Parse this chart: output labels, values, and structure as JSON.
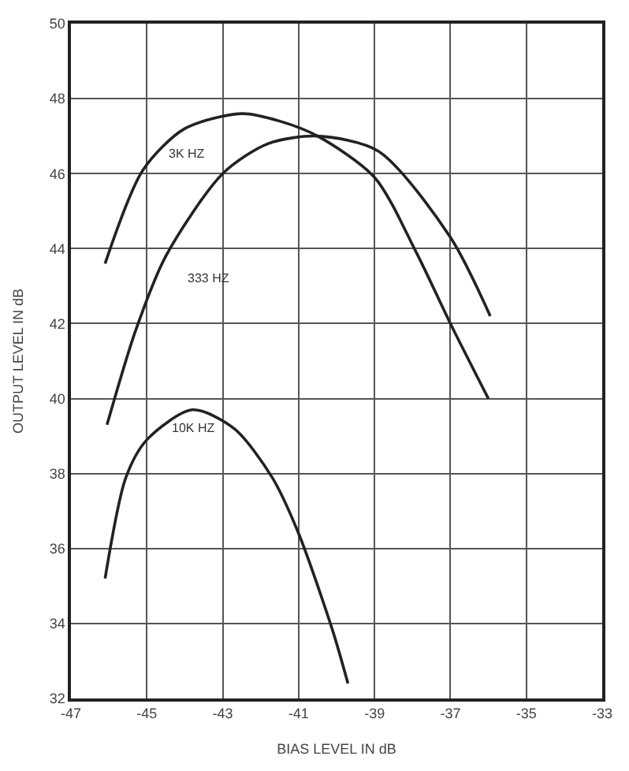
{
  "chart_data": {
    "type": "line",
    "xlabel": "BIAS LEVEL IN dB",
    "ylabel": "OUTPUT LEVEL IN dB",
    "xlim": [
      -47,
      -33
    ],
    "xticks": [
      -47,
      -45,
      -43,
      -41,
      -39,
      -37,
      -35,
      -33
    ],
    "ylim": [
      32,
      50
    ],
    "yticks": [
      32,
      34,
      36,
      38,
      40,
      42,
      44,
      46,
      48,
      50
    ],
    "grid": true,
    "legend": false,
    "marker": "none",
    "line_style": "solid",
    "series": [
      {
        "name": "3K HZ",
        "color": "#222222",
        "x": [
          -46.1,
          -45.1,
          -44.0,
          -42.5,
          -41.5,
          -40.5,
          -39.0,
          -37.9,
          -37.0,
          -36.0
        ],
        "values": [
          43.6,
          46.1,
          47.2,
          47.6,
          47.4,
          47.0,
          45.9,
          43.9,
          42.0,
          40.0
        ]
      },
      {
        "name": "333 HZ",
        "color": "#222222",
        "x": [
          -46.05,
          -45.3,
          -44.5,
          -43.0,
          -41.8,
          -40.5,
          -38.9,
          -37.0,
          -35.95
        ],
        "values": [
          39.3,
          41.8,
          43.8,
          46.0,
          46.8,
          47.0,
          46.6,
          44.3,
          42.2
        ]
      },
      {
        "name": "10K HZ",
        "color": "#222222",
        "x": [
          -46.1,
          -45.55,
          -45.0,
          -43.8,
          -42.7,
          -41.7,
          -41.0,
          -40.1,
          -39.7
        ],
        "values": [
          35.2,
          37.9,
          38.9,
          39.7,
          39.2,
          37.9,
          36.4,
          33.8,
          32.4
        ]
      }
    ]
  }
}
